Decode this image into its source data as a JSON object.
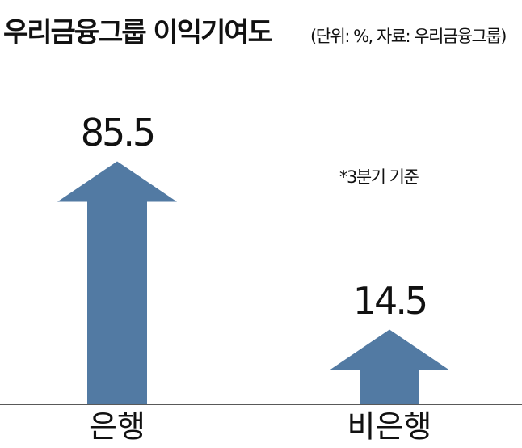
{
  "chart_data": {
    "type": "arrow-bar",
    "title": "우리금융그룹 이익기여도",
    "subtitle": "(단위: %, 자료: 우리금융그룹)",
    "annotation": "*3분기 기준",
    "categories": [
      "은행",
      "비은행"
    ],
    "values": [
      85.5,
      14.5
    ],
    "color": "#527aa3"
  }
}
